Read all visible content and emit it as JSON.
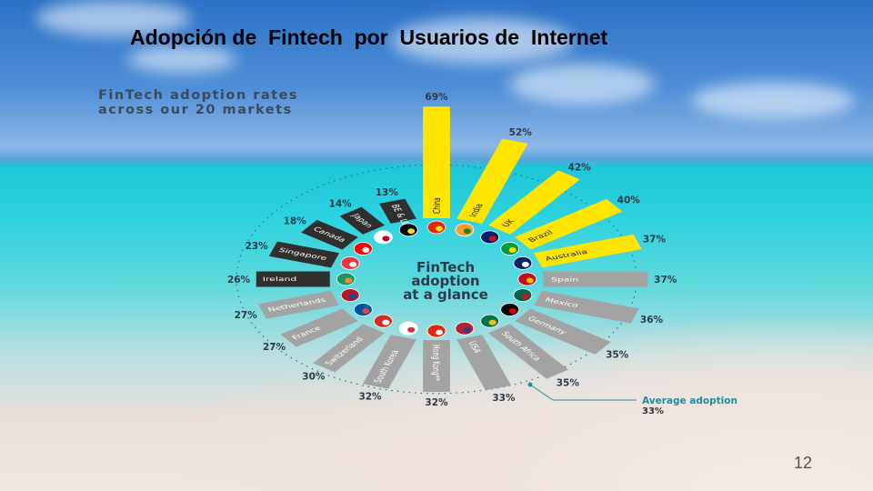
{
  "slide": {
    "title": "Adopción de  Fintech  por  Usuarios de  Internet",
    "page_number": "12"
  },
  "infographic": {
    "heading": "FinTech adoption rates across our 20 markets",
    "center_label_lines": [
      "FinTech",
      "adoption",
      "at a glance"
    ],
    "average_label": "Average adoption",
    "average_value": "33%"
  },
  "chart_data": {
    "type": "radial-bar",
    "title": "FinTech adoption at a glance",
    "unit": "%",
    "average": 33,
    "colors": {
      "high": "#ffe500",
      "mid": "#a3a3a3",
      "low": "#2f2f2f",
      "average": "#1e8ea0"
    },
    "categories": [
      "China",
      "India",
      "UK",
      "Brazil",
      "Australia",
      "Spain",
      "Mexico",
      "Germany",
      "South Africa",
      "USA",
      "Hong Kong**",
      "South Korea",
      "Switzerland",
      "France",
      "Netherlands",
      "Ireland",
      "Singapore",
      "Canada",
      "Japan",
      "BE & LUX*"
    ],
    "values": [
      69,
      52,
      42,
      40,
      37,
      37,
      36,
      35,
      35,
      33,
      32,
      32,
      30,
      27,
      27,
      26,
      23,
      18,
      14,
      13
    ],
    "value_labels": [
      "69%",
      "52%",
      "42%",
      "40%",
      "37%",
      "37%",
      "36%",
      "35%",
      "35%",
      "33%",
      "32%",
      "32%",
      "30%",
      "27%",
      "27%",
      "26%",
      "23%",
      "18%",
      "14%",
      "13%"
    ],
    "tiers": [
      "high",
      "high",
      "high",
      "high",
      "high",
      "mid",
      "mid",
      "mid",
      "mid",
      "mid",
      "mid",
      "mid",
      "mid",
      "mid",
      "mid",
      "low",
      "low",
      "low",
      "low",
      "low"
    ],
    "flags": [
      [
        "#de2910",
        "#ffde00"
      ],
      [
        "#ff9933",
        "#138808"
      ],
      [
        "#012169",
        "#c8102e"
      ],
      [
        "#009c3b",
        "#ffdf00"
      ],
      [
        "#012169",
        "#ffffff"
      ],
      [
        "#c60b1e",
        "#ffc400"
      ],
      [
        "#006847",
        "#ce1126"
      ],
      [
        "#000000",
        "#dd0000"
      ],
      [
        "#007749",
        "#ffb81c"
      ],
      [
        "#b22234",
        "#3c3b6e"
      ],
      [
        "#de2910",
        "#ffffff"
      ],
      [
        "#ffffff",
        "#cd2e3a"
      ],
      [
        "#d52b1e",
        "#ffffff"
      ],
      [
        "#0055a4",
        "#ef4135"
      ],
      [
        "#ae1c28",
        "#21468b"
      ],
      [
        "#169b62",
        "#ff883e"
      ],
      [
        "#ef3340",
        "#ffffff"
      ],
      [
        "#ff0000",
        "#ffffff"
      ],
      [
        "#ffffff",
        "#bc002d"
      ],
      [
        "#000000",
        "#fdda24"
      ]
    ]
  }
}
